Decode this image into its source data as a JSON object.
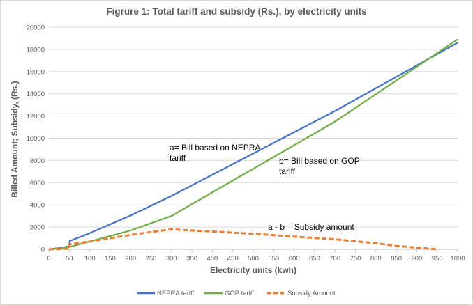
{
  "chart_data": {
    "type": "line",
    "title": "Figrure 1: Total tariff and subsidy (Rs.), by electricity units",
    "xlabel": "Electricity units (kwh)",
    "ylabel": "Billed Amount; Subsidy, (Rs.)",
    "xlim": [
      0,
      1000
    ],
    "ylim": [
      0,
      20000
    ],
    "x_ticks": [
      0,
      50,
      100,
      150,
      200,
      250,
      300,
      350,
      400,
      450,
      500,
      550,
      600,
      650,
      700,
      750,
      800,
      850,
      900,
      950,
      1000
    ],
    "y_ticks": [
      0,
      2000,
      4000,
      6000,
      8000,
      10000,
      12000,
      14000,
      16000,
      18000,
      20000
    ],
    "grid": "horizontal",
    "legend_position": "bottom",
    "series": [
      {
        "name": "NEPRA tariff",
        "color": "#4472c4",
        "style": "solid",
        "x": [
          0,
          50,
          51,
          100,
          200,
          300,
          700,
          1000
        ],
        "y": [
          0,
          250,
          750,
          1450,
          3050,
          4800,
          12450,
          18600
        ]
      },
      {
        "name": "GOP tariff",
        "color": "#70ad47",
        "style": "solid",
        "x": [
          0,
          50,
          100,
          200,
          300,
          700,
          1000
        ],
        "y": [
          0,
          200,
          700,
          1700,
          3000,
          11500,
          18900
        ]
      },
      {
        "name": "Subsidy Amount",
        "color": "#ed7d31",
        "style": "dashed",
        "x": [
          0,
          50,
          51,
          100,
          200,
          300,
          400,
          500,
          600,
          700,
          800,
          850,
          900,
          950
        ],
        "y": [
          0,
          50,
          450,
          700,
          1300,
          1800,
          1600,
          1400,
          1150,
          900,
          550,
          300,
          150,
          0
        ]
      }
    ],
    "annotations": [
      {
        "lines": [
          "a= Bill based on NEPRA",
          "tariff"
        ]
      },
      {
        "lines": [
          "b= Bill based on GOP",
          "tariff"
        ]
      },
      {
        "lines": [
          "a - b = Subsidy amount"
        ]
      }
    ]
  }
}
